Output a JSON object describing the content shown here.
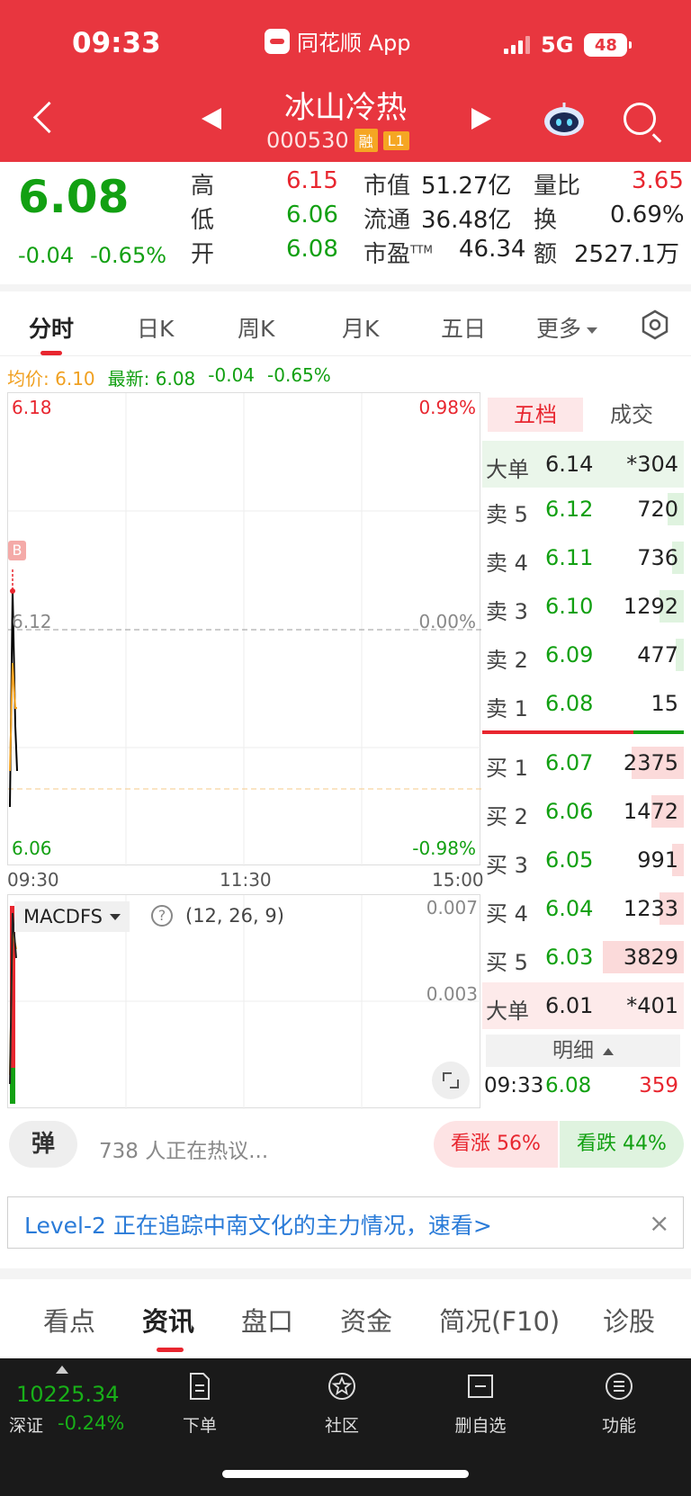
{
  "status_bar": {
    "time": "09:33",
    "app_name": "同花顺 App",
    "network": "5G",
    "battery": "48"
  },
  "header": {
    "stock_name": "冰山冷热",
    "stock_code": "000530",
    "tag_margin": "融",
    "tag_level": "L1"
  },
  "quote": {
    "price": "6.08",
    "change": "-0.04",
    "change_pct": "-0.65%",
    "high_label": "高",
    "high": "6.15",
    "low_label": "低",
    "low": "6.06",
    "open_label": "开",
    "open": "6.08",
    "mcap_label": "市值",
    "mcap": "51.27亿",
    "float_label": "流通",
    "float": "36.48亿",
    "pe_label": "市盈",
    "pe_sup": "TTM",
    "pe": "46.34",
    "vol_ratio_label": "量比",
    "vol_ratio": "3.65",
    "turnover_label": "换",
    "turnover": "0.69%",
    "amount_label": "额",
    "amount": "2527.1万"
  },
  "tabs": {
    "items": [
      "分时",
      "日K",
      "周K",
      "月K",
      "五日"
    ],
    "more": "更多"
  },
  "intraday": {
    "avg_label": "均价:",
    "avg": "6.10",
    "latest_label": "最新:",
    "latest": "6.08",
    "latest_change": "-0.04",
    "latest_pct": "-0.65%",
    "y_top": "6.18",
    "y_mid": "6.12",
    "y_bottom": "6.06",
    "pct_top": "0.98%",
    "pct_mid": "0.00%",
    "pct_bottom": "-0.98%",
    "t_start": "09:30",
    "t_mid": "11:30",
    "t_end": "15:00",
    "marker": "B"
  },
  "chart_data": {
    "type": "line",
    "x": [
      "09:30",
      "09:31",
      "09:32",
      "09:33"
    ],
    "series": [],
    "ylim": [
      6.06,
      6.18
    ]
  },
  "macd": {
    "indicator": "MACDFS",
    "params": "(12, 26, 9)",
    "y_top": "0.007",
    "y_mid": "0.003"
  },
  "order_book": {
    "tab_active": "五档",
    "tab_inactive": "成交",
    "big_sell": {
      "label": "大单",
      "price": "6.14",
      "vol": "*304"
    },
    "asks": [
      {
        "label": "卖 5",
        "price": "6.12",
        "vol": "720",
        "bar": 0.08
      },
      {
        "label": "卖 4",
        "price": "6.11",
        "vol": "736",
        "bar": 0.06
      },
      {
        "label": "卖 3",
        "price": "6.10",
        "vol": "1292",
        "bar": 0.12
      },
      {
        "label": "卖 2",
        "price": "6.09",
        "vol": "477",
        "bar": 0.04
      },
      {
        "label": "卖 1",
        "price": "6.08",
        "vol": "15",
        "bar": 0
      }
    ],
    "bids": [
      {
        "label": "买 1",
        "price": "6.07",
        "vol": "2375",
        "bar": 0.26
      },
      {
        "label": "买 2",
        "price": "6.06",
        "vol": "1472",
        "bar": 0.16
      },
      {
        "label": "买 3",
        "price": "6.05",
        "vol": "991",
        "bar": 0.06
      },
      {
        "label": "买 4",
        "price": "6.04",
        "vol": "1233",
        "bar": 0.12
      },
      {
        "label": "买 5",
        "price": "6.03",
        "vol": "3829",
        "bar": 0.4
      }
    ],
    "big_buy": {
      "label": "大单",
      "price": "6.01",
      "vol": "*401"
    },
    "detail_label": "明细",
    "tick": {
      "time": "09:33",
      "price": "6.08",
      "vol": "359"
    }
  },
  "discussion": {
    "danmu": "弹",
    "text": "738 人正在热议...",
    "bull": "看涨 56%",
    "bear": "看跌 44%"
  },
  "banner": {
    "text": "Level-2 正在追踪中南文化的主力情况，速看>",
    "close": "×"
  },
  "bottom_tabs": [
    "看点",
    "资讯",
    "盘口",
    "资金",
    "简况(F10)",
    "诊股"
  ],
  "navbar": {
    "index_value": "10225.34",
    "index_name": "深证",
    "index_change": "-0.24%",
    "items": [
      "下单",
      "社区",
      "删自选",
      "功能"
    ]
  },
  "colors": {
    "brand_red": "#e8363f",
    "up_red": "#e8262f",
    "down_green": "#12a012"
  }
}
